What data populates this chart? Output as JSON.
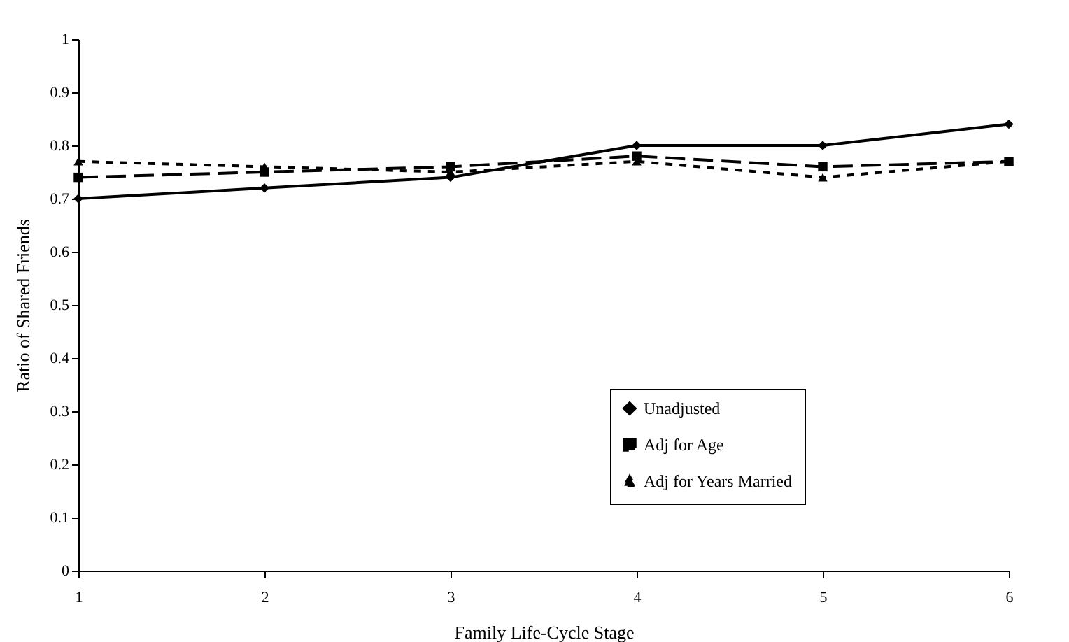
{
  "chart_data": {
    "type": "line",
    "xlabel": "Family Life-Cycle Stage",
    "ylabel": "Ratio of Shared Friends",
    "x": [
      1,
      2,
      3,
      4,
      5,
      6
    ],
    "xlim": [
      1,
      6
    ],
    "xticks": [
      1,
      2,
      3,
      4,
      5,
      6
    ],
    "ylim": [
      0,
      1
    ],
    "yticks": [
      0,
      0.1,
      0.2,
      0.3,
      0.4,
      0.5,
      0.6,
      0.7,
      0.8,
      0.9,
      1
    ],
    "grid": false,
    "legend": "bottom right",
    "series": [
      {
        "name": "Unadjusted",
        "color": "#000000",
        "marker": "diamond",
        "line_style": "solid",
        "values": [
          0.7,
          0.72,
          0.74,
          0.8,
          0.8,
          0.84
        ]
      },
      {
        "name": "Adj for Age",
        "color": "#000000",
        "marker": "square",
        "line_style": "dashed",
        "values": [
          0.74,
          0.75,
          0.76,
          0.78,
          0.76,
          0.77
        ]
      },
      {
        "name": "Adj for Years Married",
        "color": "#000000",
        "marker": "triangle",
        "line_style": "dotted",
        "values": [
          0.77,
          0.76,
          0.75,
          0.77,
          0.74,
          0.77
        ]
      }
    ]
  }
}
